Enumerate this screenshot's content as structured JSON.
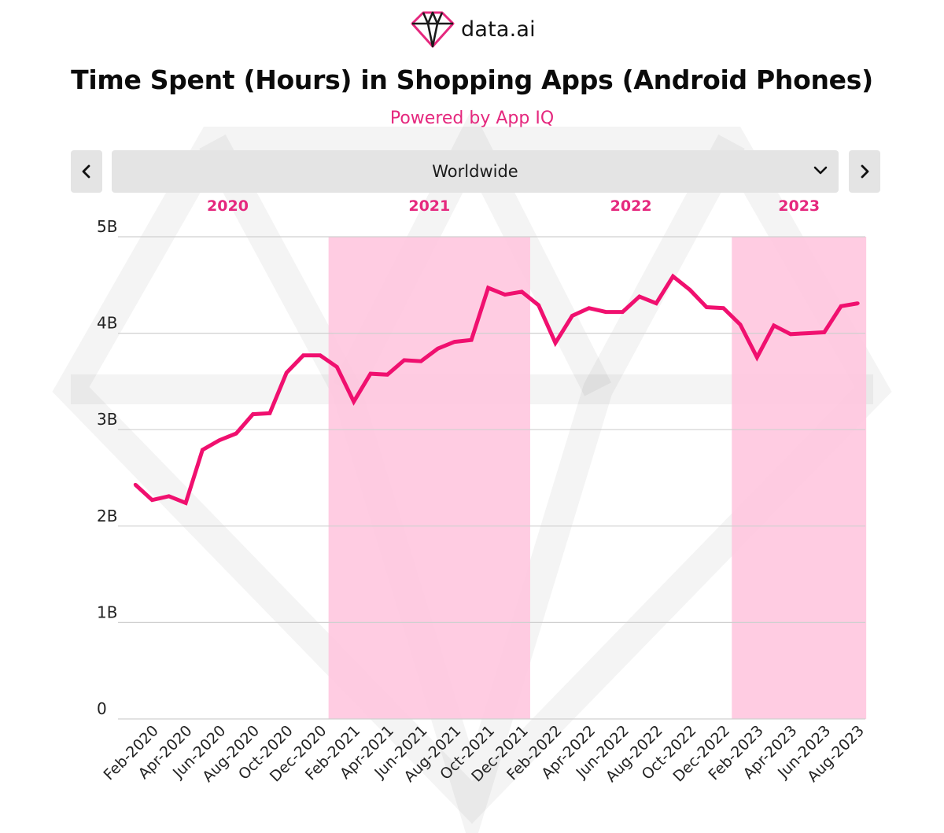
{
  "brand": {
    "name": "data.ai",
    "accent": "#e5287e"
  },
  "header": {
    "title": "Time Spent (Hours) in Shopping Apps (Android Phones)",
    "subtitle": "Powered by App IQ"
  },
  "controls": {
    "region": "Worldwide",
    "prev_icon": "chevron-left-icon",
    "next_icon": "chevron-right-icon",
    "dropdown_icon": "chevron-down-icon"
  },
  "chart_data": {
    "type": "line",
    "title": "Time Spent (Hours) in Shopping Apps (Android Phones)",
    "xlabel": "",
    "ylabel": "",
    "ylim": [
      0,
      5
    ],
    "y_unit": "B",
    "yticks": [
      {
        "value": 0,
        "label": "0"
      },
      {
        "value": 1,
        "label": "1B"
      },
      {
        "value": 2,
        "label": "2B"
      },
      {
        "value": 3,
        "label": "3B"
      },
      {
        "value": 4,
        "label": "4B"
      },
      {
        "value": 5,
        "label": "5B"
      }
    ],
    "grid": true,
    "line_color": "#f0106f",
    "band_color": "#ffc6df",
    "year_bands": [
      {
        "year": "2020",
        "start": "2020-01",
        "end": "2020-12",
        "shaded": false
      },
      {
        "year": "2021",
        "start": "2021-01",
        "end": "2021-12",
        "shaded": true
      },
      {
        "year": "2022",
        "start": "2022-01",
        "end": "2022-12",
        "shaded": false
      },
      {
        "year": "2023",
        "start": "2023-01",
        "end": "2023-08",
        "shaded": true
      }
    ],
    "x": [
      "2020-01",
      "2020-02",
      "2020-03",
      "2020-04",
      "2020-05",
      "2020-06",
      "2020-07",
      "2020-08",
      "2020-09",
      "2020-10",
      "2020-11",
      "2020-12",
      "2021-01",
      "2021-02",
      "2021-03",
      "2021-04",
      "2021-05",
      "2021-06",
      "2021-07",
      "2021-08",
      "2021-09",
      "2021-10",
      "2021-11",
      "2021-12",
      "2022-01",
      "2022-02",
      "2022-03",
      "2022-04",
      "2022-05",
      "2022-06",
      "2022-07",
      "2022-08",
      "2022-09",
      "2022-10",
      "2022-11",
      "2022-12",
      "2023-01",
      "2023-02",
      "2023-03",
      "2023-04",
      "2023-05",
      "2023-06",
      "2023-07",
      "2023-08"
    ],
    "tick_labels": [
      "Feb-2020",
      "Apr-2020",
      "Jun-2020",
      "Aug-2020",
      "Oct-2020",
      "Dec-2020",
      "Feb-2021",
      "Apr-2021",
      "Jun-2021",
      "Aug-2021",
      "Oct-2021",
      "Dec-2021",
      "Feb-2022",
      "Apr-2022",
      "Jun-2022",
      "Aug-2022",
      "Oct-2022",
      "Dec-2022",
      "Feb-2023",
      "Apr-2023",
      "Jun-2023",
      "Aug-2023"
    ],
    "series": [
      {
        "name": "Time Spent (Hours)",
        "values": [
          2.43,
          2.27,
          2.31,
          2.24,
          2.79,
          2.89,
          2.96,
          3.16,
          3.17,
          3.59,
          3.77,
          3.77,
          3.65,
          3.29,
          3.58,
          3.57,
          3.72,
          3.71,
          3.84,
          3.91,
          3.93,
          4.47,
          4.4,
          4.43,
          4.29,
          3.9,
          4.18,
          4.26,
          4.22,
          4.22,
          4.38,
          4.31,
          4.59,
          4.45,
          4.27,
          4.26,
          4.09,
          3.75,
          4.08,
          3.99,
          4.0,
          4.01,
          4.28,
          4.31
        ]
      }
    ]
  }
}
